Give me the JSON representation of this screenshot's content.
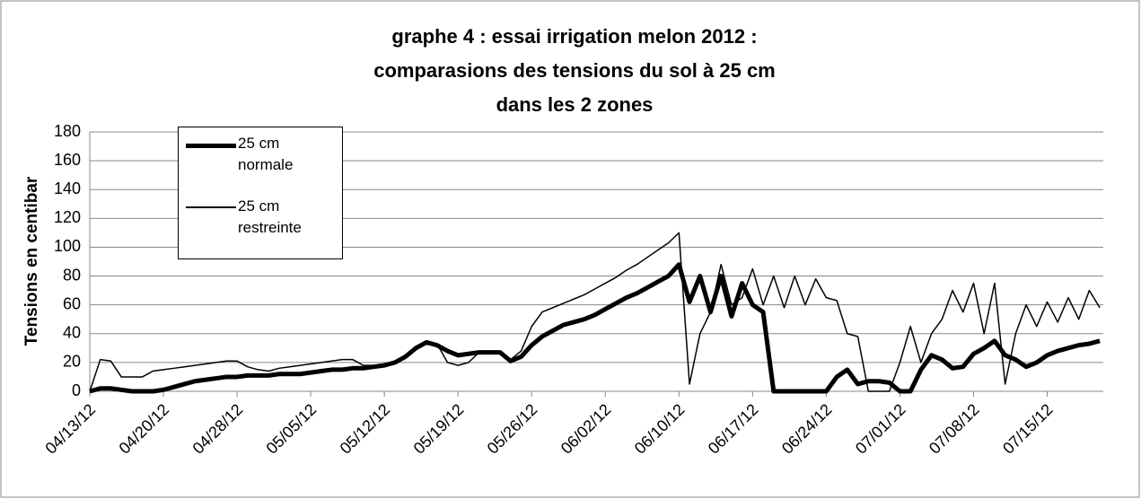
{
  "chart_data": {
    "type": "line",
    "title": [
      "graphe 4 : essai irrigation melon 2012 :",
      "comparasions des tensions du sol à 25 cm",
      "dans les 2 zones"
    ],
    "y_label": "Tensions en centibar",
    "categories": [
      "04/13/12",
      null,
      null,
      null,
      null,
      null,
      null,
      "04/20/12",
      null,
      null,
      null,
      null,
      null,
      null,
      "04/28/12",
      null,
      null,
      null,
      null,
      null,
      null,
      "05/05/12",
      null,
      null,
      null,
      null,
      null,
      null,
      "05/12/12",
      null,
      null,
      null,
      null,
      null,
      null,
      "05/19/12",
      null,
      null,
      null,
      null,
      null,
      null,
      "05/26/12",
      null,
      null,
      null,
      null,
      null,
      null,
      "06/02/12",
      null,
      null,
      null,
      null,
      null,
      null,
      "06/10/12",
      null,
      null,
      null,
      null,
      null,
      null,
      "06/17/12",
      null,
      null,
      null,
      null,
      null,
      null,
      "06/24/12",
      null,
      null,
      null,
      null,
      null,
      null,
      "07/01/12",
      null,
      null,
      null,
      null,
      null,
      null,
      "07/08/12",
      null,
      null,
      null,
      null,
      null,
      null,
      "07/15/12",
      null,
      null,
      null,
      null,
      null
    ],
    "series": [
      {
        "name": "25 cm normale",
        "color": "#000000",
        "line_width": 5,
        "values": [
          0,
          2,
          2,
          1,
          0,
          0,
          0,
          1,
          3,
          5,
          7,
          8,
          9,
          10,
          10,
          11,
          11,
          11,
          12,
          12,
          12,
          13,
          14,
          15,
          15,
          16,
          16,
          17,
          18,
          20,
          24,
          30,
          34,
          32,
          28,
          25,
          26,
          27,
          27,
          27,
          21,
          24,
          32,
          38,
          42,
          46,
          48,
          50,
          53,
          57,
          61,
          65,
          68,
          72,
          76,
          80,
          88,
          62,
          80,
          55,
          80,
          52,
          75,
          60,
          55,
          0,
          0,
          0,
          0,
          0,
          0,
          10,
          15,
          5,
          7,
          7,
          6,
          0,
          0,
          15,
          25,
          22,
          16,
          17,
          26,
          30,
          35,
          25,
          22,
          17,
          20,
          25,
          28,
          30,
          32,
          33,
          35
        ]
      },
      {
        "name": "25 cm restreinte",
        "color": "#000000",
        "line_width": 1.5,
        "values": [
          0,
          22,
          21,
          10,
          10,
          10,
          14,
          15,
          16,
          17,
          18,
          19,
          20,
          21,
          21,
          17,
          15,
          14,
          16,
          17,
          18,
          19,
          20,
          21,
          22,
          22,
          18,
          18,
          19,
          21,
          25,
          30,
          33,
          33,
          20,
          18,
          20,
          27,
          27,
          28,
          22,
          28,
          45,
          55,
          58,
          61,
          64,
          67,
          71,
          75,
          79,
          84,
          88,
          93,
          98,
          103,
          110,
          5,
          40,
          55,
          88,
          60,
          65,
          85,
          60,
          80,
          58,
          80,
          60,
          78,
          65,
          63,
          40,
          38,
          0,
          0,
          0,
          20,
          45,
          20,
          40,
          50,
          70,
          55,
          75,
          40,
          75,
          5,
          40,
          60,
          45,
          62,
          48,
          65,
          50,
          70,
          58
        ]
      }
    ],
    "ylim": [
      0,
      180
    ],
    "yticks": [
      0,
      20,
      40,
      60,
      80,
      100,
      120,
      140,
      160,
      180
    ],
    "grid": true,
    "legend": "top-left"
  }
}
